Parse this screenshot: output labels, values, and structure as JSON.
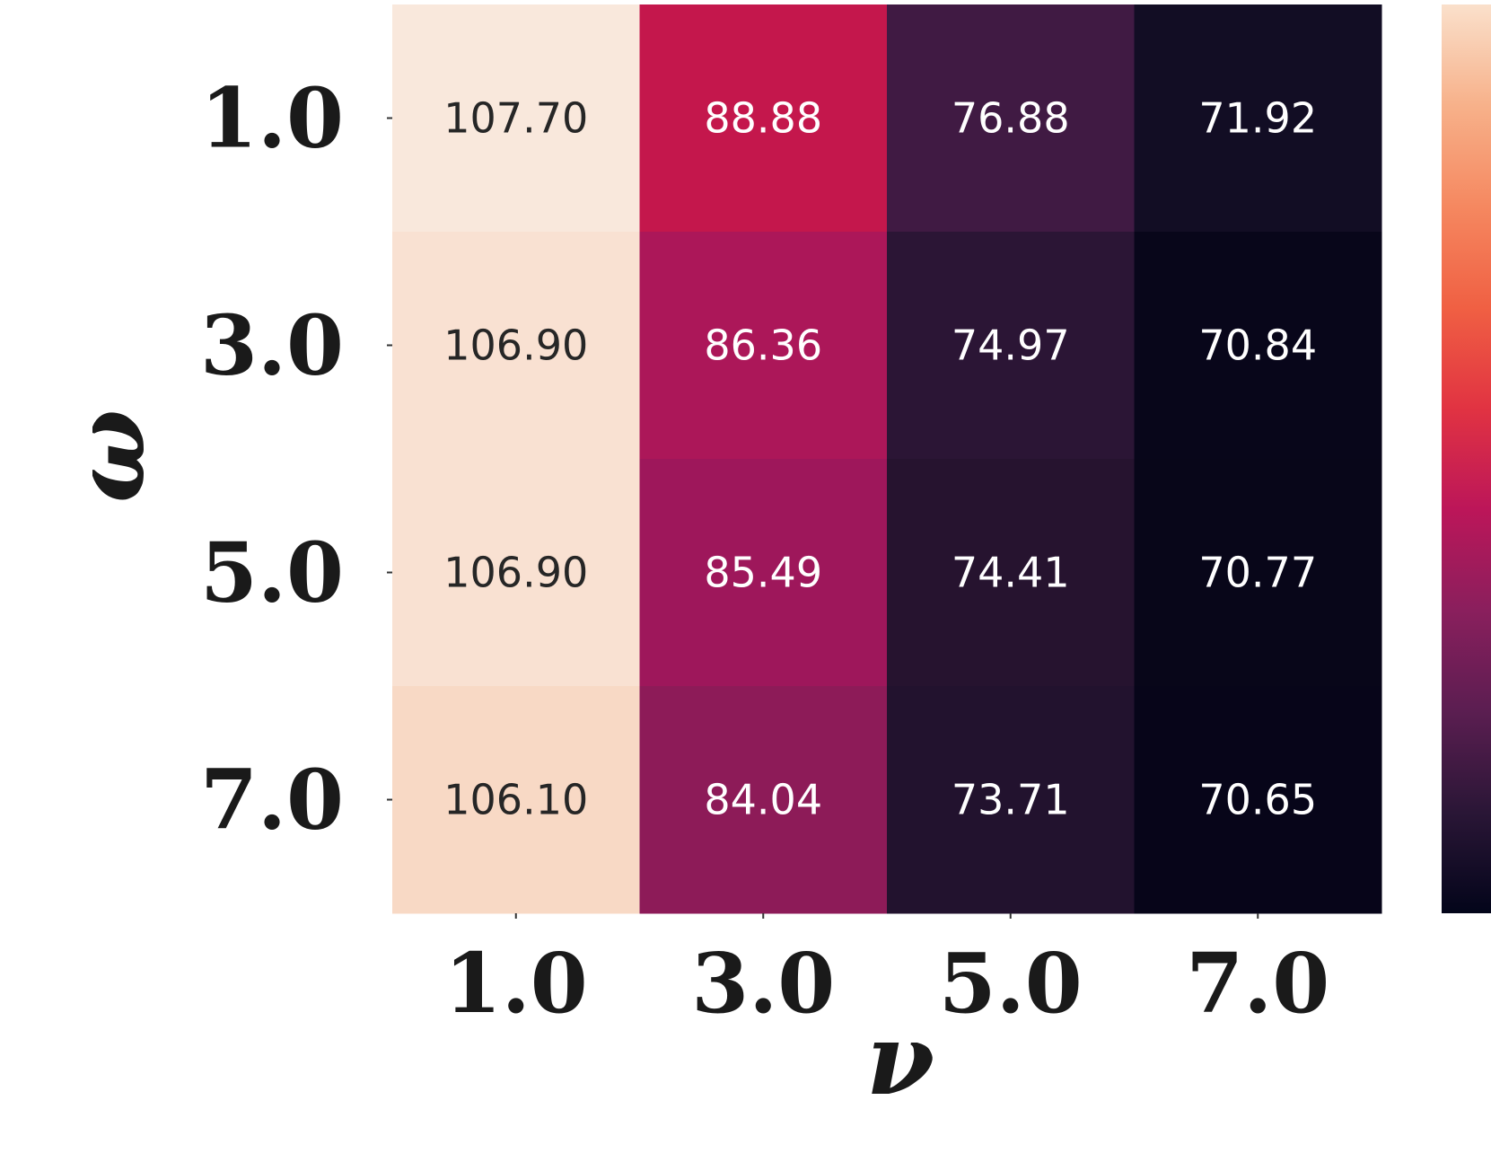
{
  "chart_data": {
    "type": "heatmap",
    "xlabel": "ν",
    "ylabel": "ω",
    "x_categories": [
      "1.0",
      "3.0",
      "5.0",
      "7.0"
    ],
    "y_categories": [
      "1.0",
      "3.0",
      "5.0",
      "7.0"
    ],
    "values": [
      [
        107.7,
        88.88,
        76.88,
        71.92
      ],
      [
        106.9,
        86.36,
        74.97,
        70.84
      ],
      [
        106.9,
        85.49,
        74.41,
        70.77
      ],
      [
        106.1,
        84.04,
        73.71,
        70.65
      ]
    ],
    "value_labels": [
      [
        "107.70",
        "88.88",
        "76.88",
        "71.92"
      ],
      [
        "106.90",
        "86.36",
        "74.97",
        "70.84"
      ],
      [
        "106.90",
        "85.49",
        "74.41",
        "70.77"
      ],
      [
        "106.10",
        "84.04",
        "73.71",
        "70.65"
      ]
    ],
    "cell_colors": [
      [
        "#f9e8dc",
        "#c4174c",
        "#401a43",
        "#120d24"
      ],
      [
        "#f9e1d2",
        "#ac1759",
        "#2b1535",
        "#08061a"
      ],
      [
        "#f9e1d2",
        "#9e175b",
        "#26132f",
        "#080619"
      ],
      [
        "#f8d9c5",
        "#8d1b58",
        "#22122e",
        "#070519"
      ]
    ],
    "label_colors": [
      [
        "#262626",
        "#ffffff",
        "#ffffff",
        "#ffffff"
      ],
      [
        "#262626",
        "#ffffff",
        "#ffffff",
        "#ffffff"
      ],
      [
        "#262626",
        "#ffffff",
        "#ffffff",
        "#ffffff"
      ],
      [
        "#262626",
        "#ffffff",
        "#ffffff",
        "#ffffff"
      ]
    ],
    "colormap": "rocket",
    "colorbar": {
      "gradient": [
        "#03051a",
        "#2a1636",
        "#5b1e51",
        "#8a1f5d",
        "#bc1659",
        "#e13342",
        "#f06043",
        "#f58860",
        "#f7b18a",
        "#fae0cb"
      ],
      "range": [
        70.65,
        107.7
      ]
    },
    "grid": false
  }
}
